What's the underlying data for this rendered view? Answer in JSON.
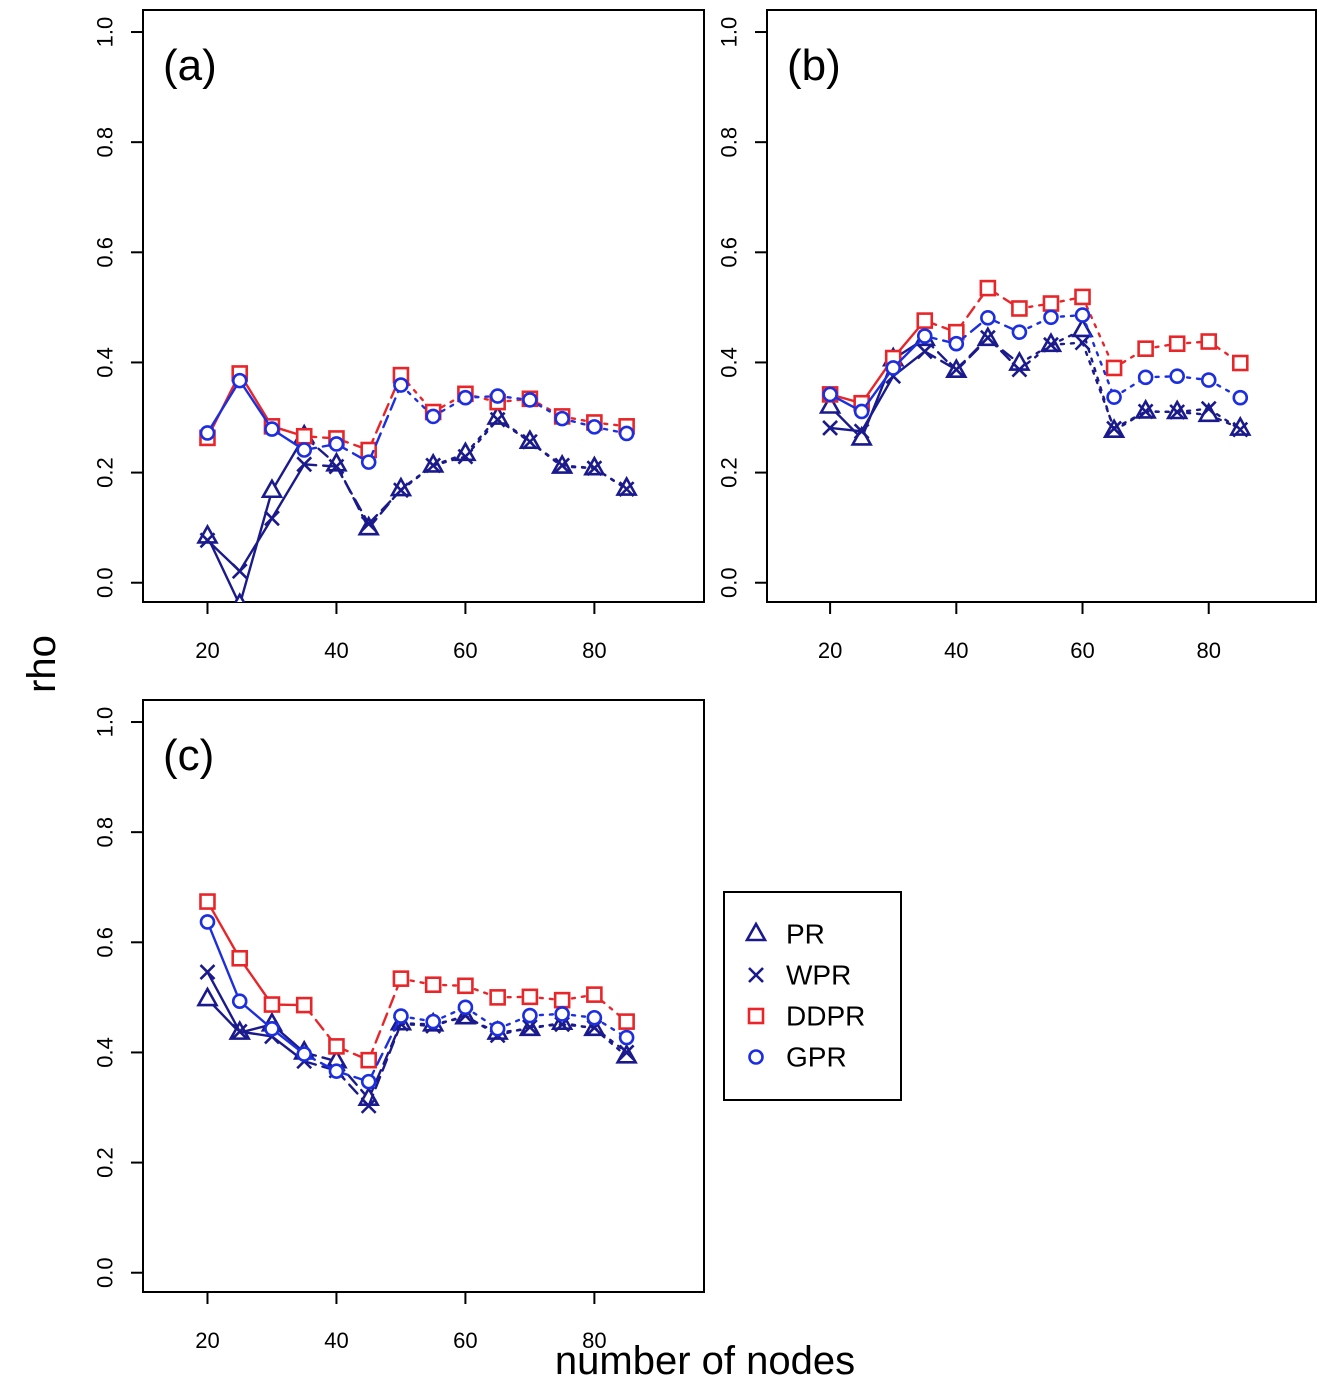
{
  "figure": {
    "ylabel": "rho",
    "xlabel": "number of nodes"
  },
  "chart_data": [
    {
      "type": "line",
      "panel_label": "(a)",
      "x": [
        20,
        25,
        30,
        35,
        40,
        45,
        50,
        55,
        60,
        65,
        70,
        75,
        80,
        85
      ],
      "x_ticks": [
        20,
        40,
        60,
        80
      ],
      "y_ticks": [
        "0.0",
        "0.2",
        "0.4",
        "0.6",
        "0.8",
        "1.0"
      ],
      "xlim": [
        10,
        97
      ],
      "ylim": [
        -0.035,
        1.04
      ],
      "series": [
        {
          "name": "PR",
          "values": [
            0.084,
            -0.04,
            0.167,
            0.266,
            0.215,
            0.099,
            0.17,
            0.213,
            0.234,
            0.3,
            0.256,
            0.211,
            0.208,
            0.171
          ]
        },
        {
          "name": "WPR",
          "values": [
            0.077,
            0.021,
            0.117,
            0.215,
            0.211,
            0.107,
            0.168,
            0.213,
            0.229,
            0.296,
            0.256,
            0.213,
            0.208,
            0.17
          ]
        },
        {
          "name": "DDPR",
          "values": [
            0.263,
            0.38,
            0.284,
            0.266,
            0.262,
            0.241,
            0.377,
            0.31,
            0.343,
            0.328,
            0.334,
            0.302,
            0.291,
            0.284
          ]
        },
        {
          "name": "GPR",
          "values": [
            0.272,
            0.367,
            0.279,
            0.241,
            0.252,
            0.219,
            0.359,
            0.302,
            0.336,
            0.339,
            0.332,
            0.298,
            0.283,
            0.271
          ]
        }
      ]
    },
    {
      "type": "line",
      "panel_label": "(b)",
      "x": [
        20,
        25,
        30,
        35,
        40,
        45,
        50,
        55,
        60,
        65,
        70,
        75,
        80,
        85
      ],
      "x_ticks": [
        20,
        40,
        60,
        80
      ],
      "y_ticks": [
        "0.0",
        "0.2",
        "0.4",
        "0.6",
        "0.8",
        "1.0"
      ],
      "xlim": [
        10,
        97
      ],
      "ylim": [
        -0.035,
        1.04
      ],
      "series": [
        {
          "name": "PR",
          "values": [
            0.32,
            0.262,
            0.406,
            0.443,
            0.385,
            0.443,
            0.398,
            0.432,
            0.459,
            0.276,
            0.311,
            0.31,
            0.305,
            0.28
          ]
        },
        {
          "name": "WPR",
          "values": [
            0.281,
            0.275,
            0.375,
            0.42,
            0.387,
            0.445,
            0.387,
            0.432,
            0.436,
            0.28,
            0.311,
            0.31,
            0.316,
            0.278
          ]
        },
        {
          "name": "DDPR",
          "values": [
            0.342,
            0.326,
            0.408,
            0.476,
            0.455,
            0.535,
            0.498,
            0.507,
            0.519,
            0.39,
            0.425,
            0.434,
            0.438,
            0.399
          ]
        },
        {
          "name": "GPR",
          "values": [
            0.342,
            0.311,
            0.39,
            0.448,
            0.434,
            0.481,
            0.455,
            0.482,
            0.486,
            0.337,
            0.373,
            0.375,
            0.368,
            0.336
          ]
        }
      ]
    },
    {
      "type": "line",
      "panel_label": "(c)",
      "x": [
        20,
        25,
        30,
        35,
        40,
        45,
        50,
        55,
        60,
        65,
        70,
        75,
        80,
        85
      ],
      "x_ticks": [
        20,
        40,
        60,
        80
      ],
      "y_ticks": [
        "0.0",
        "0.2",
        "0.4",
        "0.6",
        "0.8",
        "1.0"
      ],
      "xlim": [
        10,
        97
      ],
      "ylim": [
        -0.035,
        1.04
      ],
      "series": [
        {
          "name": "PR",
          "values": [
            0.497,
            0.436,
            0.451,
            0.4,
            0.384,
            0.316,
            0.453,
            0.451,
            0.464,
            0.436,
            0.443,
            0.454,
            0.443,
            0.393
          ]
        },
        {
          "name": "WPR",
          "values": [
            0.546,
            0.438,
            0.429,
            0.384,
            0.367,
            0.303,
            0.452,
            0.448,
            0.467,
            0.431,
            0.446,
            0.451,
            0.445,
            0.4
          ]
        },
        {
          "name": "DDPR",
          "values": [
            0.674,
            0.571,
            0.487,
            0.486,
            0.411,
            0.386,
            0.534,
            0.523,
            0.521,
            0.5,
            0.501,
            0.495,
            0.505,
            0.456
          ]
        },
        {
          "name": "GPR",
          "values": [
            0.637,
            0.493,
            0.443,
            0.397,
            0.366,
            0.347,
            0.466,
            0.456,
            0.482,
            0.443,
            0.467,
            0.47,
            0.463,
            0.427
          ]
        }
      ]
    }
  ],
  "legend": {
    "placement": "right of panel (c)",
    "items": [
      {
        "label": "PR",
        "marker": "triangle",
        "color": "#1a1a8c"
      },
      {
        "label": "WPR",
        "marker": "cross",
        "color": "#1a1a8c"
      },
      {
        "label": "DDPR",
        "marker": "square",
        "color": "#e8262a"
      },
      {
        "label": "GPR",
        "marker": "circle",
        "color": "#1c2fe0"
      }
    ]
  },
  "style": {
    "colors": {
      "PR": "#1a1a8c",
      "WPR": "#1a1a8c",
      "DDPR": "#e8262a",
      "GPR": "#1c2fe0"
    },
    "line_styles": [
      "solid",
      "dashed",
      "dotted"
    ],
    "grid": false
  }
}
